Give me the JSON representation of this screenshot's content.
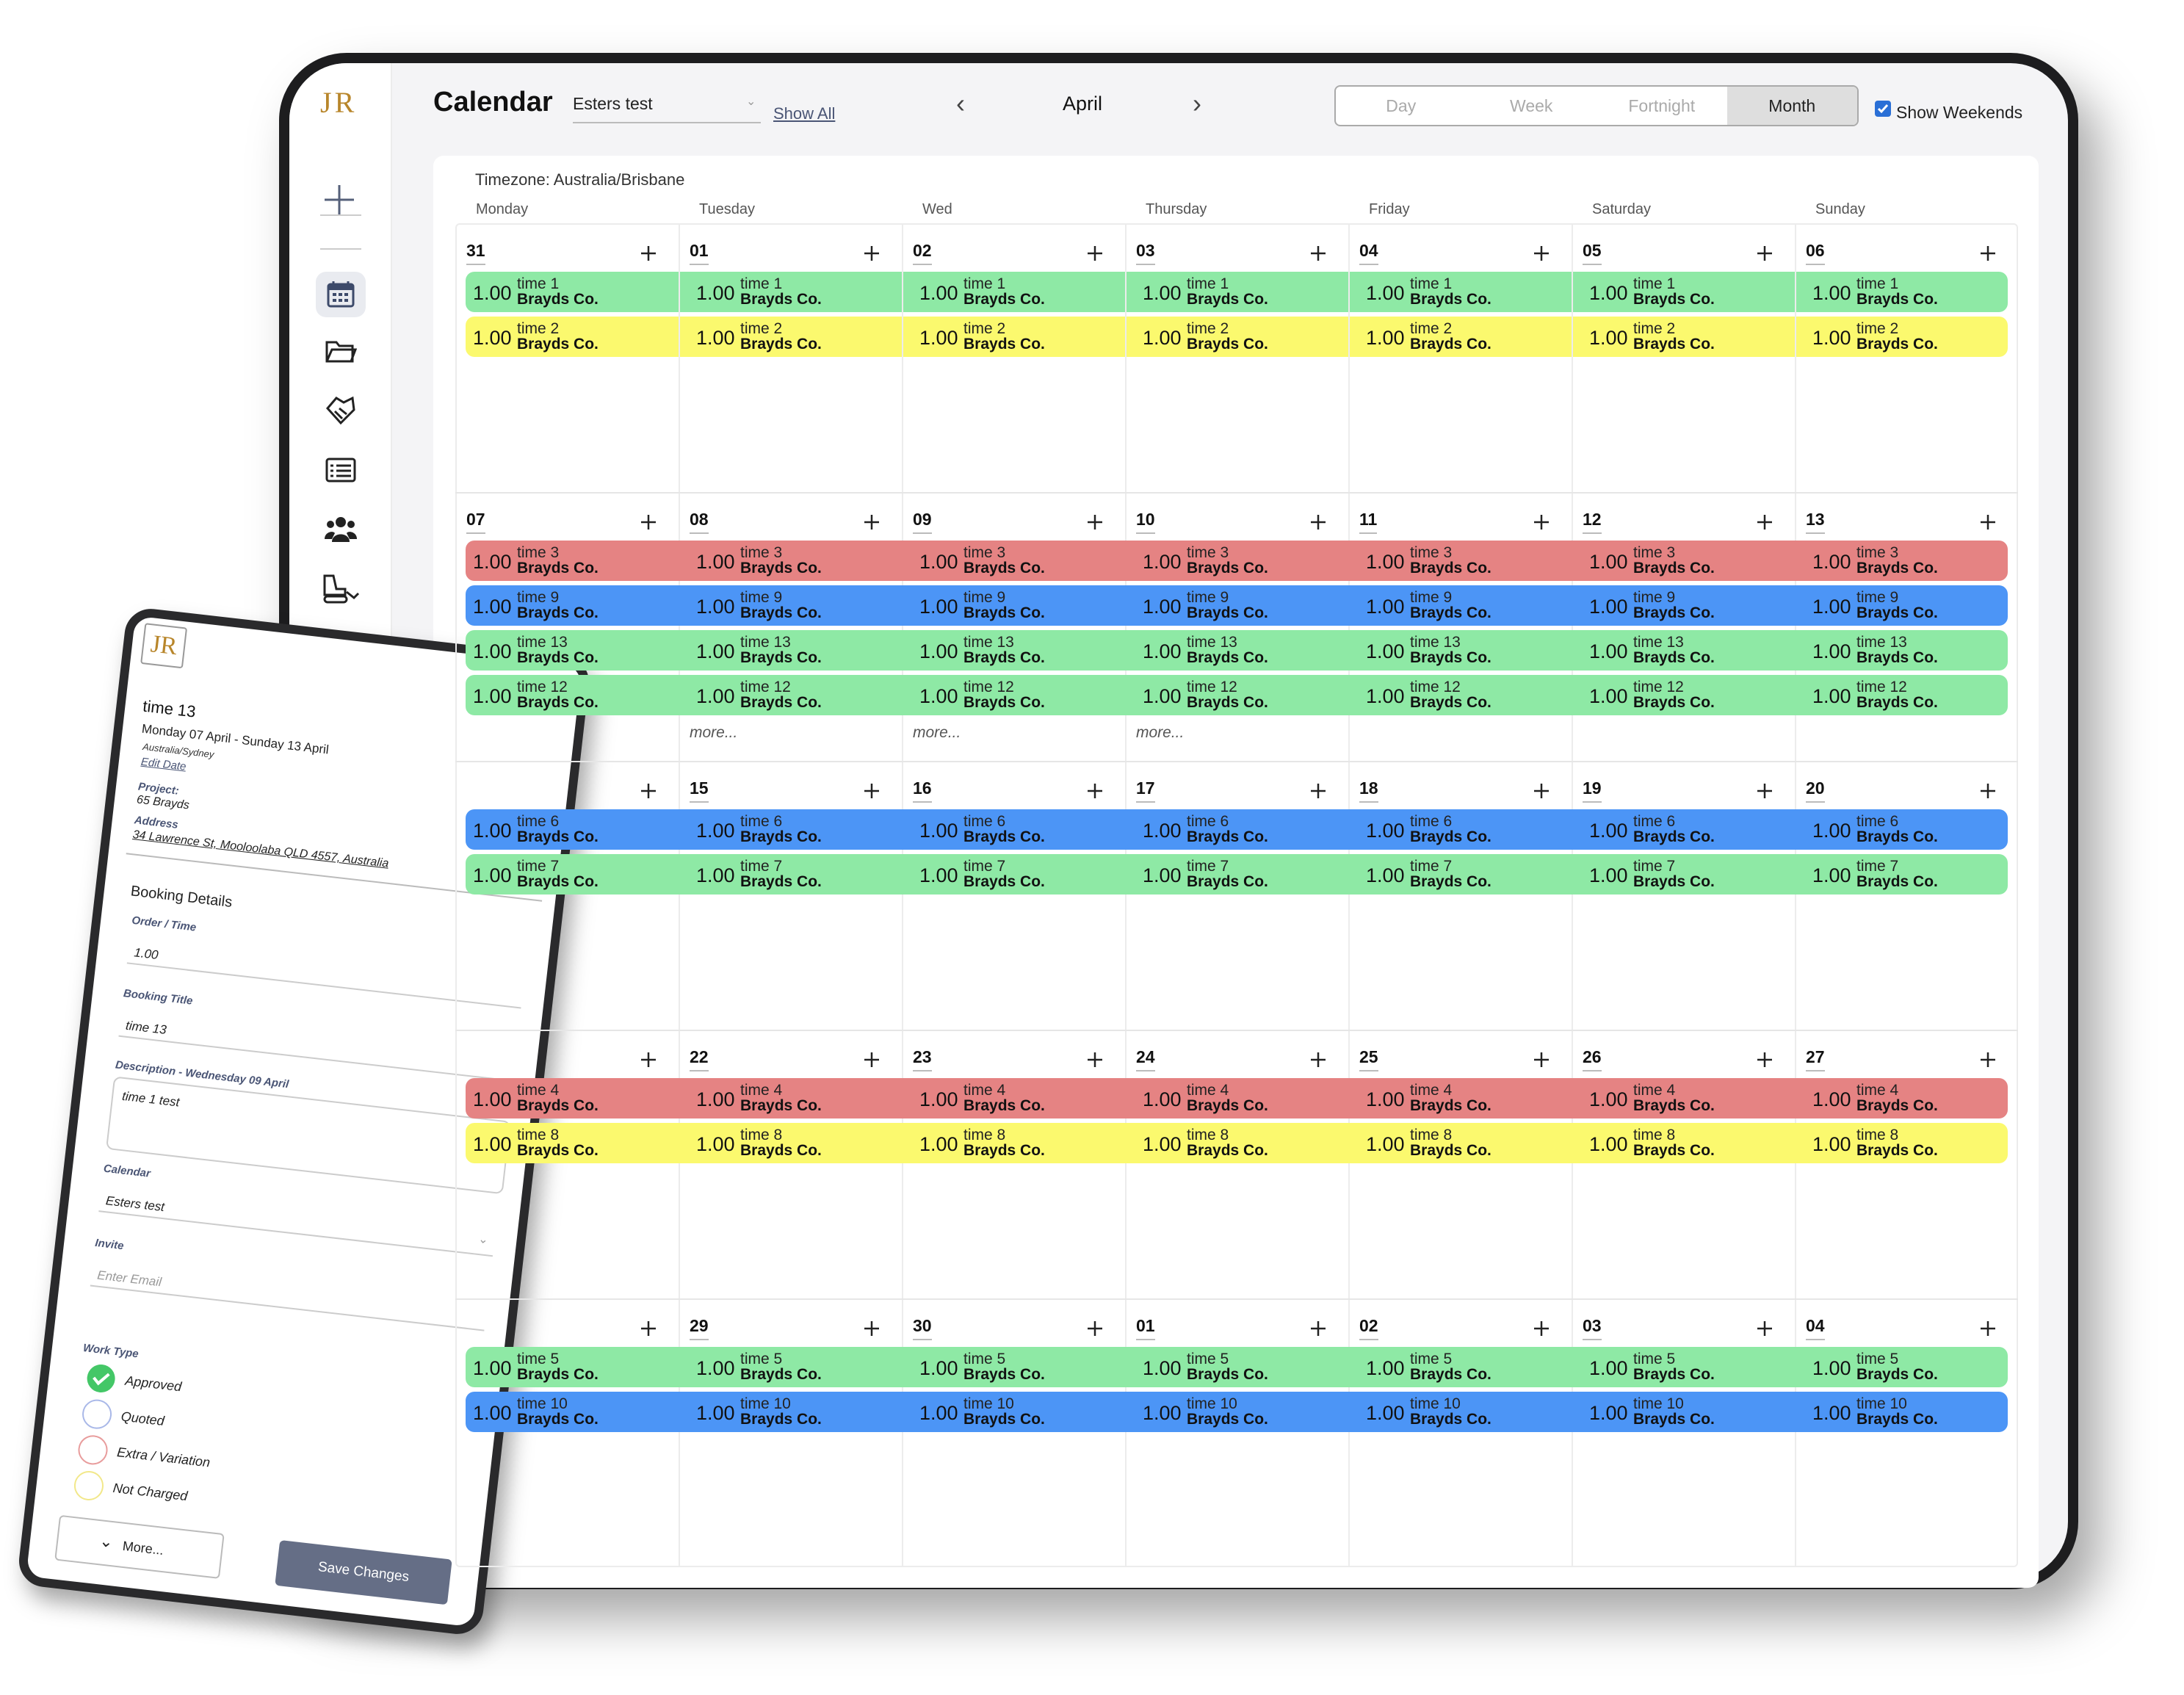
{
  "sidebar": {
    "logo": "JR"
  },
  "header": {
    "title": "Calendar",
    "calendar": "Esters test",
    "show_all": "Show All",
    "month": "April",
    "views": [
      "Day",
      "Week",
      "Fortnight",
      "Month"
    ],
    "active_view": "Month",
    "show_weekends": "Show Weekends",
    "show_weekends_checked": true
  },
  "calendar": {
    "timezone": "Timezone: Australia/Brisbane",
    "weekdays": [
      "Monday",
      "Tuesday",
      "Wed",
      "Thursday",
      "Friday",
      "Saturday",
      "Sunday"
    ],
    "weeks": [
      {
        "days": [
          {
            "date": "31"
          },
          {
            "date": "01"
          },
          {
            "date": "02"
          },
          {
            "date": "03"
          },
          {
            "date": "04"
          },
          {
            "date": "05"
          },
          {
            "date": "06"
          }
        ],
        "events": [
          {
            "order": "1.00",
            "title": "time 1",
            "client": "Brayds Co.",
            "color": "#8ee9a5"
          },
          {
            "order": "1.00",
            "title": "time 2",
            "client": "Brayds Co.",
            "color": "#fbf96e"
          }
        ]
      },
      {
        "days": [
          {
            "date": "07"
          },
          {
            "date": "08",
            "more": "more..."
          },
          {
            "date": "09",
            "more": "more..."
          },
          {
            "date": "10",
            "more": "more..."
          },
          {
            "date": "11"
          },
          {
            "date": "12"
          },
          {
            "date": "13"
          }
        ],
        "events": [
          {
            "order": "1.00",
            "title": "time 3",
            "client": "Brayds Co.",
            "color": "#e58383"
          },
          {
            "order": "1.00",
            "title": "time 9",
            "client": "Brayds Co.",
            "color": "#4c95f6"
          },
          {
            "order": "1.00",
            "title": "time 13",
            "client": "Brayds Co.",
            "color": "#8ee9a5"
          },
          {
            "order": "1.00",
            "title": "time 12",
            "client": "Brayds Co.",
            "color": "#8ee9a5"
          }
        ]
      },
      {
        "days": [
          {
            "date": null
          },
          {
            "date": "15"
          },
          {
            "date": "16"
          },
          {
            "date": "17"
          },
          {
            "date": "18"
          },
          {
            "date": "19"
          },
          {
            "date": "20"
          }
        ],
        "events": [
          {
            "order": "1.00",
            "title": "time 6",
            "client": "Brayds Co.",
            "color": "#4c95f6"
          },
          {
            "order": "1.00",
            "title": "time 7",
            "client": "Brayds Co.",
            "color": "#8ee9a5"
          }
        ]
      },
      {
        "days": [
          {
            "date": null
          },
          {
            "date": "22"
          },
          {
            "date": "23"
          },
          {
            "date": "24"
          },
          {
            "date": "25"
          },
          {
            "date": "26"
          },
          {
            "date": "27"
          }
        ],
        "events": [
          {
            "order": "1.00",
            "title": "time 4",
            "client": "Brayds Co.",
            "color": "#e58383"
          },
          {
            "order": "1.00",
            "title": "time 8",
            "client": "Brayds Co.",
            "color": "#fbf96e"
          }
        ]
      },
      {
        "days": [
          {
            "date": null
          },
          {
            "date": "29"
          },
          {
            "date": "30"
          },
          {
            "date": "01"
          },
          {
            "date": "02"
          },
          {
            "date": "03"
          },
          {
            "date": "04"
          }
        ],
        "events": [
          {
            "order": "1.00",
            "title": "time 5",
            "client": "Brayds Co.",
            "color": "#8ee9a5"
          },
          {
            "order": "1.00",
            "title": "time 10",
            "client": "Brayds Co.",
            "color": "#4c95f6"
          }
        ]
      }
    ]
  },
  "panel": {
    "logo": "JR",
    "title": "time 13",
    "dates": "Monday 07 April  -  Sunday 13 April",
    "timezone": "Australia/Sydney",
    "edit_date": "Edit Date",
    "project_label": "Project:",
    "project": "65 Brayds",
    "address_label": "Address",
    "address": "34 Lawrence St, Mooloolaba QLD 4557, Australia",
    "section": "Booking Details",
    "order_label": "Order / Time",
    "order": "1.00",
    "booking_title_label": "Booking Title",
    "booking_title": "time 13",
    "description_label": "Description - Wednesday 09 April",
    "description": "time 1 test",
    "calendar_label": "Calendar",
    "calendar": "Esters test",
    "invite_label": "Invite",
    "invite_placeholder": "Enter Email",
    "work_type_label": "Work Type",
    "work_types": [
      {
        "label": "Approved",
        "color": "#44c767",
        "checked": true
      },
      {
        "label": "Quoted",
        "color": "#a9b8e8",
        "checked": false
      },
      {
        "label": "Extra / Variation",
        "color": "#e89c9c",
        "checked": false
      },
      {
        "label": "Not Charged",
        "color": "#f2e88a",
        "checked": false
      }
    ],
    "more_button": "More...",
    "save_button": "Save Changes"
  }
}
